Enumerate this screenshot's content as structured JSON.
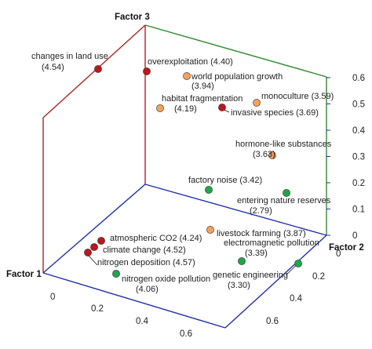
{
  "chart_data": {
    "type": "scatter",
    "projection": "3d",
    "axes": {
      "x": {
        "label": "Factor 1",
        "ticks": [
          "0",
          "0.2",
          "0.4",
          "0.6"
        ],
        "color": "#1f2fa8"
      },
      "y": {
        "label": "Factor 2",
        "ticks": [
          "0",
          "0.2",
          "0.4",
          "0.6"
        ],
        "color": "#1f2fa8"
      },
      "z": {
        "label": "Factor 3",
        "ticks": [
          "0",
          "0.1",
          "0.2",
          "0.3",
          "0.4",
          "0.5",
          "0.6"
        ],
        "color": "#1f2fa8"
      }
    },
    "frame_colors": {
      "factor1_plane": "#b22222",
      "factor2_plane": "#2e8b2e",
      "floor": "#1f2fa8"
    },
    "group_colors": {
      "red": "#c0161b",
      "orange": "#f4a15d",
      "green": "#1fa64a"
    },
    "points": [
      {
        "label": "changes in land use",
        "value": "(4.54)",
        "group": "red",
        "x": 0.02,
        "y": 0.0,
        "z": 0.52
      },
      {
        "label": "overexploitation",
        "value": "(4.40)",
        "group": "red",
        "x": 0.16,
        "y": 0.0,
        "z": 0.49
      },
      {
        "label": "world population growth",
        "value": "(3.94)",
        "group": "orange",
        "x": 0.2,
        "y": 0.07,
        "z": 0.44
      },
      {
        "label": "habitat fragmentation",
        "value": "(4.19)",
        "group": "orange",
        "x": 0.14,
        "y": 0.07,
        "z": 0.34
      },
      {
        "label": "invasive species",
        "value": "(3.69)",
        "group": "red",
        "x": 0.25,
        "y": 0.05,
        "z": 0.35
      },
      {
        "label": "monoculture",
        "value": "(3.59)",
        "group": "orange",
        "x": 0.27,
        "y": 0.13,
        "z": 0.39
      },
      {
        "label": "hormone-like substances",
        "value": "(3.63)",
        "group": "orange",
        "x": 0.35,
        "y": 0.16,
        "z": 0.26
      },
      {
        "label": "factory noise",
        "value": "(3.42)",
        "group": "green",
        "x": 0.37,
        "y": 0.06,
        "z": 0.16
      },
      {
        "label": "entering nature reserves",
        "value": "(2.79)",
        "group": "green",
        "x": 0.5,
        "y": 0.12,
        "z": 0.18
      },
      {
        "label": "atmospheric CO2",
        "value": "(4.24)",
        "group": "red",
        "x": 0.05,
        "y": 0.06,
        "z": 0.03
      },
      {
        "label": "climate change",
        "value": "(4.52)",
        "group": "red",
        "x": 0.04,
        "y": 0.06,
        "z": 0.02
      },
      {
        "label": "nitrogen deposition",
        "value": "(4.57)",
        "group": "red",
        "x": 0.02,
        "y": 0.06,
        "z": 0.01
      },
      {
        "label": "nitrogen oxide pollution",
        "value": "(4.06)",
        "group": "green",
        "x": 0.3,
        "y": 0.18,
        "z": 0.02
      },
      {
        "label": "livestock farming",
        "value": "(3.87)",
        "group": "orange",
        "x": 0.38,
        "y": 0.12,
        "z": 0.14
      },
      {
        "label": "electromagnetic pollution",
        "value": "(3.39)",
        "group": "green",
        "x": 0.47,
        "y": 0.05,
        "z": 0.08
      },
      {
        "label": "genetic engineering",
        "value": "(3.30)",
        "group": "green",
        "x": 0.62,
        "y": 0.16,
        "z": 0.08
      }
    ]
  }
}
